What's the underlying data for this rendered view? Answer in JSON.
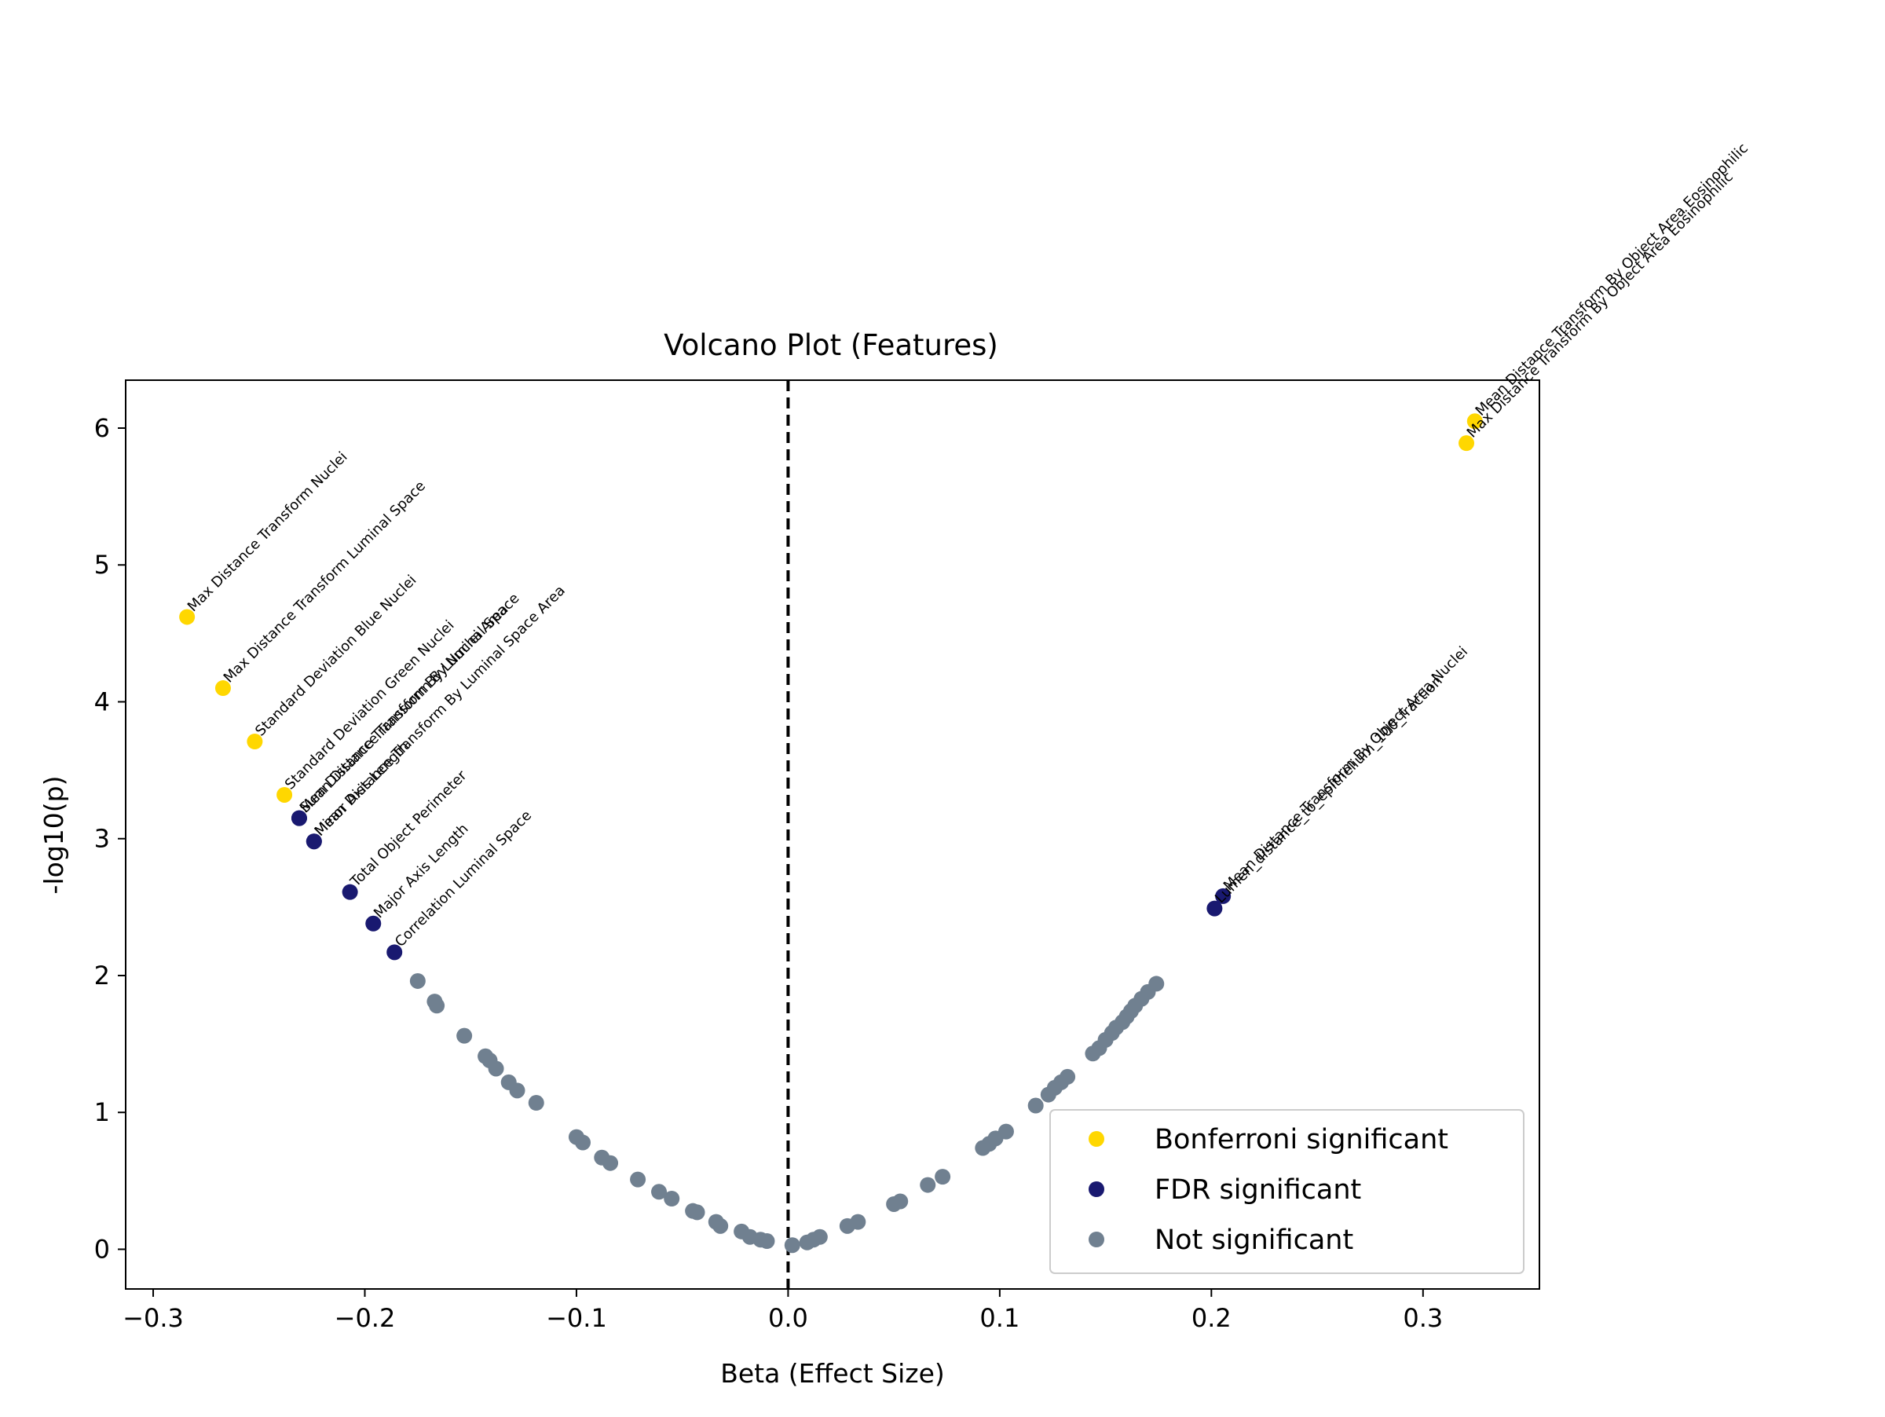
{
  "chart_data": {
    "type": "scatter",
    "title": "Volcano Plot (Features)",
    "xlabel": "Beta (Effect Size)",
    "ylabel": "-log10(p)",
    "xlim": [
      -0.313,
      0.355
    ],
    "ylim": [
      -0.29,
      6.35
    ],
    "xticks": [
      -0.3,
      -0.2,
      -0.1,
      0.0,
      0.1,
      0.2,
      0.3
    ],
    "xtick_labels": [
      "−0.3",
      "−0.2",
      "−0.1",
      "0.0",
      "0.1",
      "0.2",
      "0.3"
    ],
    "yticks": [
      0,
      1,
      2,
      3,
      4,
      5,
      6
    ],
    "ytick_labels": [
      "0",
      "1",
      "2",
      "3",
      "4",
      "5",
      "6"
    ],
    "grid": false,
    "legend_position": "bottom-right",
    "vline": {
      "x": 0.0,
      "style": "dashed",
      "color": "#000000"
    },
    "colors": {
      "bonferroni": "#FFD700",
      "fdr": "#191970",
      "not_significant": "#708090"
    },
    "series": [
      {
        "name": "Bonferroni significant",
        "key": "bonferroni",
        "points": [
          {
            "x": 0.3245,
            "y": 6.05,
            "label": "Mean Distance Transform By Object Area Eosinophilic"
          },
          {
            "x": 0.3205,
            "y": 5.89,
            "label": "Max Distance Transform By Object Area Eosinophilic"
          },
          {
            "x": -0.284,
            "y": 4.62,
            "label": "Max Distance Transform Nuclei"
          },
          {
            "x": -0.267,
            "y": 4.1,
            "label": "Max Distance Transform Luminal Space"
          },
          {
            "x": -0.252,
            "y": 3.71,
            "label": "Standard Deviation Blue Nuclei"
          },
          {
            "x": -0.238,
            "y": 3.32,
            "label": "Standard Deviation Green Nuclei"
          }
        ]
      },
      {
        "name": "FDR significant",
        "key": "fdr",
        "points": [
          {
            "x": -0.231,
            "y": 3.15,
            "label": "Mean Distance Transform By Nuclei Area"
          },
          {
            "x": -0.231,
            "y": 3.15,
            "label": "Sum Distance Transform By Luminal Space"
          },
          {
            "x": -0.224,
            "y": 2.98,
            "label": "Mean Distance Transform By Luminal Space Area"
          },
          {
            "x": -0.224,
            "y": 2.98,
            "label": "Minor Axis Length"
          },
          {
            "x": -0.207,
            "y": 2.61,
            "label": "Total Object Perimeter"
          },
          {
            "x": -0.196,
            "y": 2.38,
            "label": "Major Axis Length"
          },
          {
            "x": -0.186,
            "y": 2.17,
            "label": "Correlation Luminal Space"
          },
          {
            "x": 0.2055,
            "y": 2.58,
            "label": "Mean Distance Transform By Object Area Nuclei"
          },
          {
            "x": 0.2015,
            "y": 2.49,
            "label": "Lumen_distance_to_epithelium_100_fraction"
          }
        ]
      },
      {
        "name": "Not significant",
        "key": "not_significant",
        "points": [
          {
            "x": -0.175,
            "y": 1.96
          },
          {
            "x": -0.167,
            "y": 1.81
          },
          {
            "x": -0.166,
            "y": 1.78
          },
          {
            "x": -0.153,
            "y": 1.56
          },
          {
            "x": -0.143,
            "y": 1.41
          },
          {
            "x": -0.141,
            "y": 1.38
          },
          {
            "x": -0.138,
            "y": 1.32
          },
          {
            "x": -0.132,
            "y": 1.22
          },
          {
            "x": -0.128,
            "y": 1.16
          },
          {
            "x": -0.119,
            "y": 1.07
          },
          {
            "x": -0.1,
            "y": 0.82
          },
          {
            "x": -0.097,
            "y": 0.78
          },
          {
            "x": -0.088,
            "y": 0.67
          },
          {
            "x": -0.084,
            "y": 0.63
          },
          {
            "x": -0.071,
            "y": 0.51
          },
          {
            "x": -0.061,
            "y": 0.42
          },
          {
            "x": -0.055,
            "y": 0.37
          },
          {
            "x": -0.045,
            "y": 0.28
          },
          {
            "x": -0.043,
            "y": 0.27
          },
          {
            "x": -0.034,
            "y": 0.2
          },
          {
            "x": -0.032,
            "y": 0.17
          },
          {
            "x": -0.022,
            "y": 0.13
          },
          {
            "x": -0.018,
            "y": 0.09
          },
          {
            "x": -0.013,
            "y": 0.07
          },
          {
            "x": -0.01,
            "y": 0.06
          },
          {
            "x": 0.002,
            "y": 0.03
          },
          {
            "x": 0.009,
            "y": 0.05
          },
          {
            "x": 0.012,
            "y": 0.07
          },
          {
            "x": 0.015,
            "y": 0.09
          },
          {
            "x": 0.028,
            "y": 0.17
          },
          {
            "x": 0.033,
            "y": 0.2
          },
          {
            "x": 0.05,
            "y": 0.33
          },
          {
            "x": 0.053,
            "y": 0.35
          },
          {
            "x": 0.066,
            "y": 0.47
          },
          {
            "x": 0.073,
            "y": 0.53
          },
          {
            "x": 0.092,
            "y": 0.74
          },
          {
            "x": 0.095,
            "y": 0.77
          },
          {
            "x": 0.098,
            "y": 0.81
          },
          {
            "x": 0.103,
            "y": 0.86
          },
          {
            "x": 0.117,
            "y": 1.05
          },
          {
            "x": 0.123,
            "y": 1.13
          },
          {
            "x": 0.126,
            "y": 1.18
          },
          {
            "x": 0.129,
            "y": 1.22
          },
          {
            "x": 0.132,
            "y": 1.26
          },
          {
            "x": 0.144,
            "y": 1.43
          },
          {
            "x": 0.147,
            "y": 1.47
          },
          {
            "x": 0.15,
            "y": 1.53
          },
          {
            "x": 0.153,
            "y": 1.58
          },
          {
            "x": 0.155,
            "y": 1.62
          },
          {
            "x": 0.158,
            "y": 1.66
          },
          {
            "x": 0.16,
            "y": 1.7
          },
          {
            "x": 0.162,
            "y": 1.74
          },
          {
            "x": 0.164,
            "y": 1.78
          },
          {
            "x": 0.167,
            "y": 1.83
          },
          {
            "x": 0.17,
            "y": 1.88
          },
          {
            "x": 0.174,
            "y": 1.94
          }
        ]
      }
    ]
  }
}
